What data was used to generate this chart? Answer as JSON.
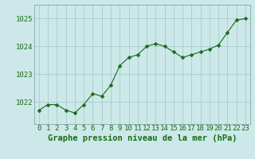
{
  "x": [
    0,
    1,
    2,
    3,
    4,
    5,
    6,
    7,
    8,
    9,
    10,
    11,
    12,
    13,
    14,
    15,
    16,
    17,
    18,
    19,
    20,
    21,
    22,
    23
  ],
  "y": [
    1021.7,
    1021.9,
    1021.9,
    1021.7,
    1021.6,
    1021.9,
    1022.3,
    1022.2,
    1022.6,
    1023.3,
    1023.6,
    1023.7,
    1024.0,
    1024.1,
    1024.0,
    1023.8,
    1023.6,
    1023.7,
    1023.8,
    1023.9,
    1024.05,
    1024.5,
    1024.95,
    1025.0
  ],
  "line_color": "#1a6b1a",
  "marker": "D",
  "marker_size": 2.5,
  "bg_color": "#cce8e8",
  "grid_color": "#aacccc",
  "xlabel": "Graphe pression niveau de la mer (hPa)",
  "xlabel_color": "#1a6b1a",
  "xlabel_fontsize": 7.5,
  "tick_color": "#1a6b1a",
  "tick_fontsize": 6.5,
  "ytick_labels": [
    "1022",
    "1023",
    "1024",
    "1025"
  ],
  "ytick_values": [
    1022,
    1023,
    1024,
    1025
  ],
  "ylim": [
    1021.2,
    1025.5
  ],
  "xlim": [
    -0.5,
    23.5
  ]
}
